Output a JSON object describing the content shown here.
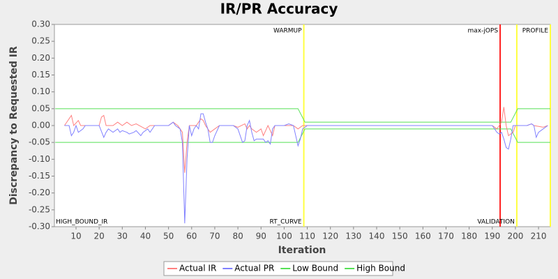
{
  "chart_data": {
    "type": "line",
    "title": "IR/PR Accuracy",
    "x_label": "Iteration",
    "y_label": "Discrepancy to Requested IR",
    "xlim": [
      0.65,
      215.1
    ],
    "ylim": [
      -0.3,
      0.3
    ],
    "xticks": [
      10,
      20,
      30,
      40,
      50,
      60,
      70,
      80,
      90,
      100,
      110,
      120,
      130,
      140,
      150,
      160,
      170,
      180,
      190,
      200,
      210
    ],
    "yticks": [
      {
        "value": -0.3,
        "label": "-0.30"
      },
      {
        "value": -0.25,
        "label": "-0.25"
      },
      {
        "value": -0.2,
        "label": "-0.20"
      },
      {
        "value": -0.15,
        "label": "-0.15"
      },
      {
        "value": -0.1,
        "label": "-0.10"
      },
      {
        "value": -0.05,
        "label": "-0.05"
      },
      {
        "value": 0,
        "label": "0.00"
      },
      {
        "value": 0.05,
        "label": "0.05"
      },
      {
        "value": 0.1,
        "label": "0.10"
      },
      {
        "value": 0.15,
        "label": "0.15"
      },
      {
        "value": 0.2,
        "label": "0.20"
      },
      {
        "value": 0.25,
        "label": "0.25"
      },
      {
        "value": 0.3,
        "label": "0.30"
      }
    ],
    "series": [
      {
        "name": "Actual IR",
        "color": "#ff8080",
        "x": [
          5,
          7,
          8,
          9,
          11,
          12,
          20,
          21,
          22,
          23,
          26,
          28,
          30,
          32,
          34,
          36,
          40,
          42,
          50,
          52,
          54,
          56,
          57,
          58,
          59,
          62,
          64,
          65,
          66,
          68,
          70,
          72,
          78,
          80,
          83,
          84,
          85,
          86,
          88,
          90,
          91,
          93,
          95,
          96,
          100,
          104,
          106,
          108,
          110,
          190,
          192,
          193,
          194,
          195,
          196,
          197,
          199,
          200,
          205,
          207,
          208,
          212,
          214
        ],
        "values": [
          0,
          0.02,
          0.03,
          0,
          0.015,
          0,
          0,
          0.025,
          0.03,
          0,
          0,
          0.01,
          0,
          0.01,
          0,
          0.005,
          -0.01,
          0,
          0,
          0.01,
          0,
          -0.02,
          -0.14,
          -0.05,
          0,
          0,
          0.02,
          0.015,
          0,
          -0.02,
          -0.01,
          0,
          0,
          -0.005,
          0.005,
          -0.01,
          0,
          -0.01,
          -0.02,
          -0.01,
          -0.03,
          0,
          -0.03,
          0,
          0,
          0,
          -0.01,
          0,
          0,
          0,
          -0.01,
          0,
          0.01,
          0.055,
          0,
          -0.03,
          -0.02,
          0,
          0,
          0.005,
          0,
          -0.005,
          0
        ]
      },
      {
        "name": "Actual PR",
        "color": "#8080ff",
        "x": [
          5,
          7,
          8,
          9,
          10,
          11,
          13,
          14,
          20,
          22,
          23,
          24,
          26,
          28,
          29,
          30,
          32,
          33,
          35,
          36,
          38,
          39,
          41,
          42,
          44,
          50,
          52,
          53,
          55,
          56,
          57,
          58,
          59,
          60,
          61,
          62,
          63,
          64,
          65,
          66,
          67,
          68,
          69,
          70,
          72,
          78,
          80,
          82,
          83,
          84,
          85,
          86,
          87,
          88,
          91,
          92,
          93,
          94,
          95,
          96,
          100,
          102,
          104,
          105,
          106,
          107,
          108,
          110,
          190,
          192,
          193,
          194,
          195,
          196,
          197,
          198,
          199,
          205,
          207,
          208,
          209,
          210,
          212,
          214
        ],
        "values": [
          0,
          0,
          -0.03,
          -0.02,
          0,
          -0.02,
          -0.01,
          0,
          0,
          -0.035,
          -0.02,
          -0.01,
          -0.02,
          -0.01,
          -0.02,
          -0.015,
          -0.02,
          -0.025,
          -0.02,
          -0.015,
          -0.03,
          -0.02,
          -0.01,
          -0.02,
          0,
          0,
          0.01,
          0,
          -0.01,
          -0.05,
          -0.29,
          -0.1,
          0,
          -0.03,
          -0.01,
          0,
          -0.01,
          0.035,
          0.035,
          0.01,
          -0.01,
          -0.05,
          -0.05,
          -0.03,
          0,
          0,
          -0.01,
          -0.05,
          -0.045,
          0,
          0.015,
          -0.02,
          -0.045,
          -0.04,
          -0.04,
          -0.05,
          -0.045,
          -0.055,
          -0.01,
          0,
          0,
          0.005,
          0,
          -0.03,
          -0.06,
          -0.04,
          -0.01,
          0,
          0,
          -0.02,
          -0.025,
          -0.02,
          -0.04,
          -0.065,
          -0.07,
          -0.04,
          0,
          0,
          0.005,
          0,
          -0.035,
          -0.02,
          -0.01,
          0
        ]
      },
      {
        "name": "Low Bound",
        "color": "#55e055",
        "x": [
          1,
          106,
          109,
          198,
          201,
          215.1
        ],
        "values": [
          -0.05,
          -0.05,
          -0.01,
          -0.01,
          -0.05,
          -0.05
        ]
      },
      {
        "name": "High Bound",
        "color": "#55e055",
        "x": [
          1,
          106,
          109,
          198,
          201,
          215.1
        ],
        "values": [
          0.05,
          0.05,
          0.01,
          0.01,
          0.05,
          0.05
        ]
      }
    ],
    "markers": [
      {
        "x": 108.5,
        "color": "#ffff40",
        "top": "WARMUP",
        "bottom": "RT_CURVE"
      },
      {
        "x": 193.4,
        "color": "#ff2020",
        "top": "max-jOPS"
      },
      {
        "x": 200.6,
        "color": "#ffff40",
        "bottom": "VALIDATION"
      },
      {
        "x": 215.1,
        "color": "#ffff40",
        "top": "PROFILE"
      }
    ],
    "start_label": "HIGH_BOUND_IR"
  }
}
